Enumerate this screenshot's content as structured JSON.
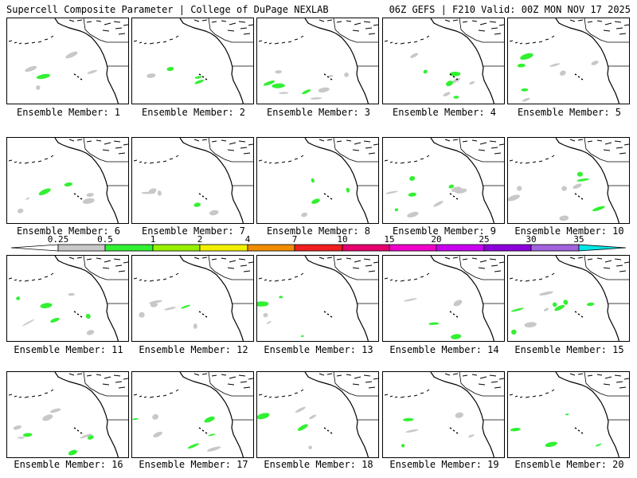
{
  "header": {
    "title": "Supercell Composite Parameter | College of DuPage NEXLAB",
    "run_info": "06Z GEFS | F210 Valid: 00Z MON NOV 17 2025"
  },
  "member_label_prefix": "Ensemble Member: ",
  "members": [
    "1",
    "2",
    "3",
    "4",
    "5",
    "6",
    "7",
    "8",
    "9",
    "10",
    "11",
    "12",
    "13",
    "14",
    "15",
    "16",
    "17",
    "18",
    "19",
    "20"
  ],
  "colorbar": {
    "labels": [
      "0.25",
      "0.5",
      "1",
      "2",
      "4",
      "7",
      "10",
      "15",
      "20",
      "25",
      "30",
      "35"
    ],
    "colors": [
      "#c8c8c8",
      "#32f032",
      "#96f000",
      "#f0f000",
      "#f08c00",
      "#f01e1e",
      "#e6006e",
      "#f000c8",
      "#c800f0",
      "#8c00dc",
      "#a064dc",
      "#00e6e6"
    ]
  }
}
